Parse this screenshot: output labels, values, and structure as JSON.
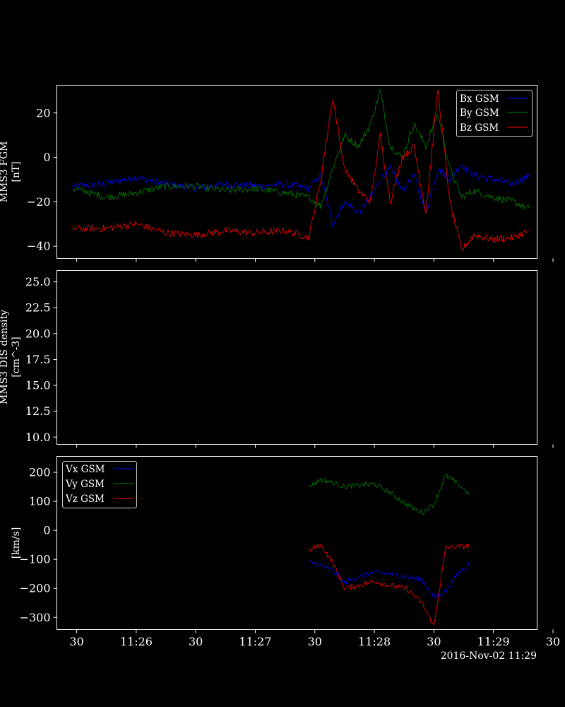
{
  "chart_data": [
    {
      "type": "line",
      "ylabel": [
        "MMS3 FGM",
        "[nT]"
      ],
      "ylim": [
        -45.5,
        32.5
      ],
      "yticks": [
        20,
        0,
        -20,
        -40
      ],
      "ytick_labels": [
        "20",
        "0",
        "−20",
        "−40"
      ],
      "grid": false,
      "legend": "top-right",
      "series": [
        {
          "name": "Bx GSM",
          "color": "#0000ff",
          "x": [
            "11:25:28",
            "11:25:45",
            "11:26:00",
            "11:26:15",
            "11:26:30",
            "11:26:45",
            "11:27:00",
            "11:27:15",
            "11:27:27",
            "11:27:33",
            "11:27:39",
            "11:27:45",
            "11:27:52",
            "11:27:58",
            "11:28:03",
            "11:28:08",
            "11:28:14",
            "11:28:20",
            "11:28:26",
            "11:28:32",
            "11:28:38",
            "11:28:44",
            "11:28:50",
            "11:29:00",
            "11:29:10",
            "11:29:18"
          ],
          "values": [
            -13,
            -12,
            -9,
            -12,
            -14,
            -12,
            -13,
            -12,
            -14,
            -8,
            -30,
            -20,
            -25,
            -18,
            -10,
            -5,
            -15,
            -8,
            -25,
            -5,
            -10,
            -3,
            -8,
            -10,
            -12,
            -8
          ]
        },
        {
          "name": "By GSM",
          "color": "#008000",
          "x": [
            "11:25:28",
            "11:25:45",
            "11:26:00",
            "11:26:15",
            "11:26:30",
            "11:26:45",
            "11:27:00",
            "11:27:15",
            "11:27:27",
            "11:27:33",
            "11:27:39",
            "11:27:45",
            "11:27:52",
            "11:27:58",
            "11:28:03",
            "11:28:08",
            "11:28:14",
            "11:28:20",
            "11:28:26",
            "11:28:32",
            "11:28:38",
            "11:28:44",
            "11:28:50",
            "11:29:00",
            "11:29:10",
            "11:29:18"
          ],
          "values": [
            -14,
            -18,
            -16,
            -13,
            -13,
            -15,
            -14,
            -16,
            -18,
            -22,
            -5,
            10,
            5,
            15,
            30,
            5,
            0,
            15,
            5,
            20,
            -5,
            -18,
            -15,
            -18,
            -20,
            -23
          ]
        },
        {
          "name": "Bz GSM",
          "color": "#ff0000",
          "x": [
            "11:25:28",
            "11:25:45",
            "11:26:00",
            "11:26:15",
            "11:26:30",
            "11:26:45",
            "11:27:00",
            "11:27:15",
            "11:27:27",
            "11:27:33",
            "11:27:39",
            "11:27:45",
            "11:27:52",
            "11:27:58",
            "11:28:03",
            "11:28:08",
            "11:28:14",
            "11:28:20",
            "11:28:26",
            "11:28:32",
            "11:28:38",
            "11:28:44",
            "11:28:50",
            "11:29:00",
            "11:29:10",
            "11:29:18"
          ],
          "values": [
            -32,
            -32,
            -30,
            -34,
            -35,
            -33,
            -34,
            -33,
            -36,
            -10,
            27,
            -5,
            -15,
            -20,
            10,
            -20,
            0,
            5,
            -25,
            31,
            -20,
            -42,
            -35,
            -37,
            -36,
            -33
          ]
        }
      ]
    },
    {
      "type": "line",
      "ylabel": [
        "MMS3 DIS density",
        "[cm^-3]"
      ],
      "ylim": [
        9.3,
        26.1
      ],
      "yticks": [
        25.0,
        22.5,
        20.0,
        17.5,
        15.0,
        12.5,
        10.0
      ],
      "ytick_labels": [
        "25.0",
        "22.5",
        "20.0",
        "17.5",
        "15.0",
        "12.5",
        "10.0"
      ],
      "grid": false,
      "series": []
    },
    {
      "type": "line",
      "ylabel": [
        "",
        "[km/s]"
      ],
      "ylim": [
        -342,
        255
      ],
      "yticks": [
        200,
        100,
        0,
        -100,
        -200,
        -300
      ],
      "ytick_labels": [
        "200",
        "100",
        "0",
        "−100",
        "−200",
        "−300"
      ],
      "grid": false,
      "legend": "top-left",
      "series": [
        {
          "name": "Vx GSM",
          "color": "#0000ff",
          "x": [
            "11:27:27",
            "11:27:33",
            "11:27:39",
            "11:27:45",
            "11:27:52",
            "11:28:00",
            "11:28:08",
            "11:28:16",
            "11:28:24",
            "11:28:30",
            "11:28:36",
            "11:28:42",
            "11:28:48"
          ],
          "values": [
            -110,
            -120,
            -140,
            -180,
            -160,
            -145,
            -150,
            -160,
            -170,
            -230,
            -210,
            -150,
            -115
          ]
        },
        {
          "name": "Vy GSM",
          "color": "#008000",
          "x": [
            "11:27:27",
            "11:27:33",
            "11:27:39",
            "11:27:45",
            "11:27:52",
            "11:28:00",
            "11:28:08",
            "11:28:16",
            "11:28:24",
            "11:28:30",
            "11:28:36",
            "11:28:42",
            "11:28:48"
          ],
          "values": [
            150,
            175,
            165,
            150,
            155,
            160,
            130,
            90,
            60,
            90,
            190,
            160,
            125
          ]
        },
        {
          "name": "Vz GSM",
          "color": "#ff0000",
          "x": [
            "11:27:27",
            "11:27:33",
            "11:27:39",
            "11:27:45",
            "11:27:52",
            "11:28:00",
            "11:28:08",
            "11:28:16",
            "11:28:24",
            "11:28:30",
            "11:28:36",
            "11:28:42",
            "11:28:48"
          ],
          "values": [
            -70,
            -50,
            -110,
            -200,
            -190,
            -175,
            -190,
            -200,
            -250,
            -330,
            -60,
            -55,
            -55
          ]
        }
      ]
    }
  ],
  "xaxis": {
    "start": "11:25:20",
    "end": "11:29:22",
    "ticks": [
      "11:25:30",
      "11:26:00",
      "11:26:30",
      "11:27:00",
      "11:27:30",
      "11:28:00",
      "11:28:30",
      "11:29:00",
      "11:29:30"
    ],
    "tick_labels": [
      "30",
      "11:26",
      "30",
      "11:27",
      "30",
      "11:28",
      "30",
      "11:29",
      "30"
    ],
    "date_label": "2016-Nov-02 11:29"
  },
  "colors": {
    "background": "#000000",
    "axes": "#ffffff"
  }
}
